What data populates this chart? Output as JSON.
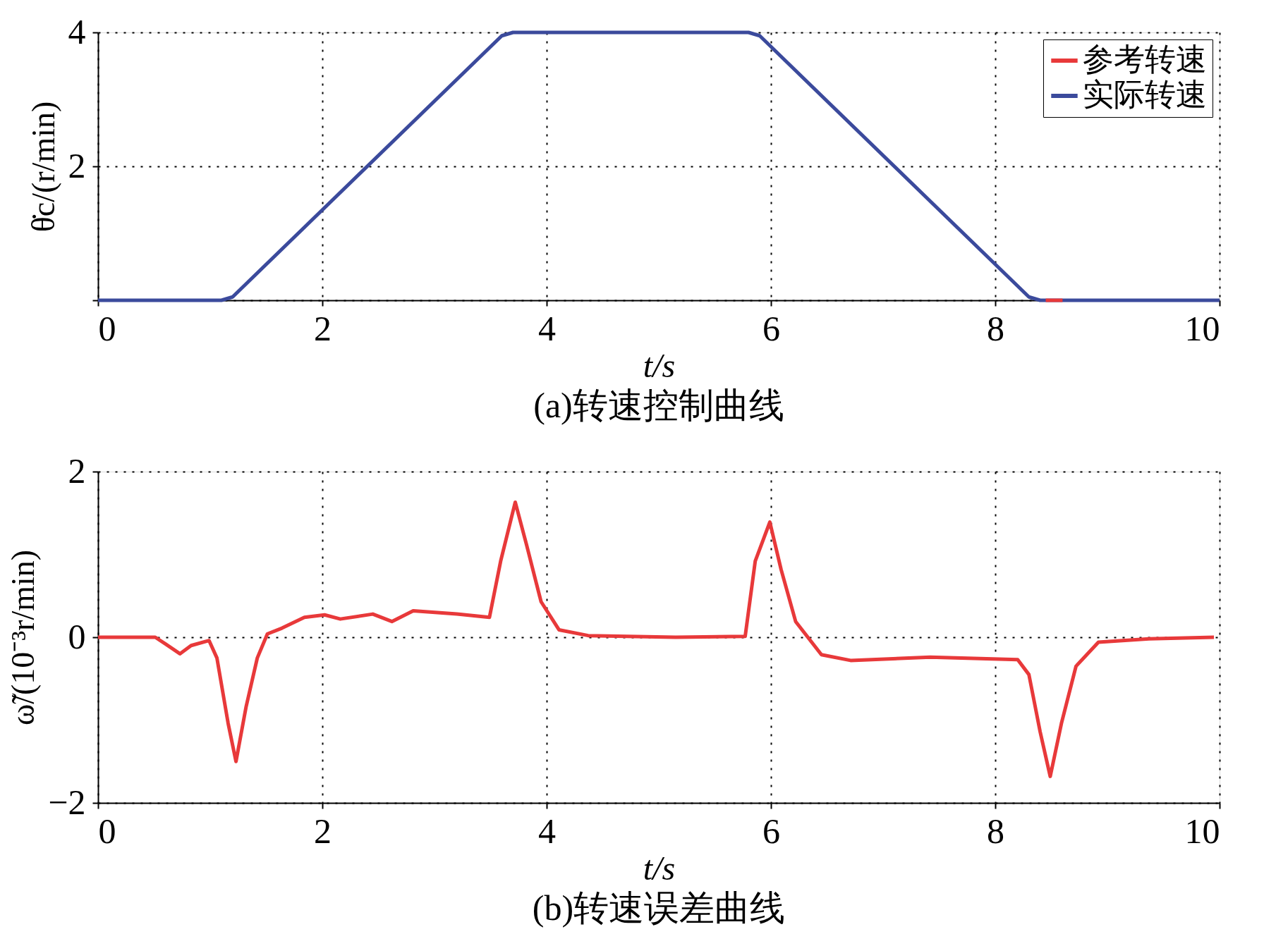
{
  "chart_data": [
    {
      "type": "line",
      "title": "(a)转速控制曲线",
      "xlabel": "t/s",
      "ylabel": "θ̇c/(r/min)",
      "xlim": [
        0,
        10
      ],
      "xticks": [
        0,
        2,
        4,
        6,
        8,
        10
      ],
      "ylim": [
        0,
        4
      ],
      "yticks": [
        {
          "value": 0,
          "label": null
        },
        2,
        4
      ],
      "grid": true,
      "legend": "top right",
      "series": [
        {
          "name": "参考转速",
          "color": "#e8393a",
          "x": [
            8.45,
            8.6
          ],
          "values": [
            0,
            0
          ]
        },
        {
          "name": "实际转速",
          "color": "#3b4a9c",
          "x": [
            0,
            1.1,
            1.2,
            3.6,
            3.7,
            5.8,
            5.9,
            8.3,
            8.4,
            10
          ],
          "values": [
            0,
            0,
            0.05,
            3.95,
            4,
            4,
            3.95,
            0.05,
            0,
            0
          ]
        }
      ]
    },
    {
      "type": "line",
      "title": "(b)转速误差曲线",
      "xlabel": "t/s",
      "ylabel": "ω̃/(10⁻³r/min)",
      "xlim": [
        0,
        10
      ],
      "xticks": [
        0,
        2,
        4,
        6,
        8,
        10
      ],
      "ylim": [
        -2,
        2
      ],
      "yticks": [
        {
          "value": -2,
          "label": "−2"
        },
        0,
        2
      ],
      "grid": true,
      "series": [
        {
          "color": "#e8393a",
          "x": [
            0,
            0.51,
            0.6,
            0.73,
            0.83,
            0.99,
            1.06,
            1.16,
            1.23,
            1.32,
            1.42,
            1.51,
            1.64,
            1.84,
            2.02,
            2.16,
            2.45,
            2.62,
            2.81,
            3.2,
            3.49,
            3.59,
            3.72,
            3.82,
            3.95,
            4.11,
            4.37,
            5.15,
            5.77,
            5.86,
            5.99,
            6.09,
            6.22,
            6.45,
            6.71,
            7.42,
            8.2,
            8.3,
            8.4,
            8.49,
            8.59,
            8.72,
            8.92,
            9.37,
            9.95
          ],
          "values": [
            0,
            0,
            -0.08,
            -0.2,
            -0.1,
            -0.04,
            -0.25,
            -1.04,
            -1.5,
            -0.84,
            -0.25,
            0.04,
            0.11,
            0.24,
            0.27,
            0.22,
            0.28,
            0.19,
            0.32,
            0.28,
            0.24,
            0.92,
            1.63,
            1.12,
            0.43,
            0.09,
            0.02,
            0,
            0.01,
            0.92,
            1.39,
            0.82,
            0.19,
            -0.21,
            -0.28,
            -0.24,
            -0.27,
            -0.45,
            -1.14,
            -1.68,
            -1.04,
            -0.35,
            -0.06,
            -0.02,
            0
          ]
        }
      ]
    }
  ]
}
